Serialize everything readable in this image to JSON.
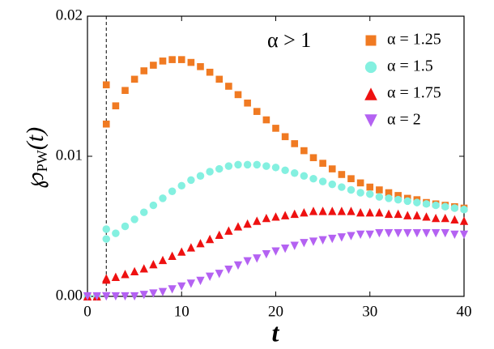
{
  "chart_data": {
    "type": "scatter",
    "annotation": "α > 1",
    "x_label": "t",
    "y_label": {
      "symbol": "℘",
      "subscript": "PW",
      "arg": "(t)"
    },
    "xlim": [
      0,
      40
    ],
    "xticks": [
      0,
      10,
      20,
      30,
      40
    ],
    "ylim": [
      0,
      0.02
    ],
    "yticks": [
      {
        "value": 0,
        "label": "0.00"
      },
      {
        "value": 0.01,
        "label": "0.01"
      },
      {
        "value": 0.02,
        "label": "0.02"
      }
    ],
    "vline": 2,
    "legend": "upper right",
    "x": [
      0,
      1,
      2,
      2,
      3,
      4,
      5,
      6,
      7,
      8,
      9,
      10,
      11,
      12,
      13,
      14,
      15,
      16,
      17,
      18,
      19,
      20,
      21,
      22,
      23,
      24,
      25,
      26,
      27,
      28,
      29,
      30,
      31,
      32,
      33,
      34,
      35,
      36,
      37,
      38,
      39,
      40
    ],
    "series": [
      {
        "name": "α = 1.25",
        "color": "#f07a22",
        "marker": "square",
        "values": [
          0,
          0,
          0.0151,
          0.0123,
          0.0136,
          0.0147,
          0.0155,
          0.0161,
          0.0165,
          0.0168,
          0.0169,
          0.0169,
          0.0167,
          0.0164,
          0.016,
          0.0155,
          0.015,
          0.0144,
          0.0138,
          0.0132,
          0.0126,
          0.012,
          0.0114,
          0.0109,
          0.0104,
          0.0099,
          0.0095,
          0.0091,
          0.0087,
          0.0084,
          0.0081,
          0.0078,
          0.0076,
          0.0074,
          0.0072,
          0.007,
          0.0069,
          0.0067,
          0.0066,
          0.0065,
          0.0064,
          0.0063
        ]
      },
      {
        "name": "α = 1.5",
        "color": "#84f0e0",
        "marker": "circle",
        "values": [
          0,
          0,
          0.0048,
          0.0041,
          0.0045,
          0.005,
          0.0055,
          0.006,
          0.0065,
          0.007,
          0.0075,
          0.0079,
          0.0083,
          0.0086,
          0.0089,
          0.0091,
          0.0093,
          0.0094,
          0.0094,
          0.0094,
          0.0093,
          0.0092,
          0.009,
          0.0088,
          0.0086,
          0.0084,
          0.0082,
          0.008,
          0.0078,
          0.0076,
          0.0074,
          0.0073,
          0.0071,
          0.007,
          0.0069,
          0.0068,
          0.0067,
          0.0066,
          0.0065,
          0.0064,
          0.0063,
          0.0062
        ]
      },
      {
        "name": "α = 1.75",
        "color": "#ee1111",
        "marker": "triangle-up",
        "values": [
          0,
          0,
          0.0013,
          0.0012,
          0.0014,
          0.0016,
          0.0018,
          0.002,
          0.0023,
          0.0026,
          0.0029,
          0.0032,
          0.0035,
          0.0038,
          0.0041,
          0.0044,
          0.0047,
          0.005,
          0.0052,
          0.0054,
          0.0056,
          0.0057,
          0.0058,
          0.0059,
          0.006,
          0.0061,
          0.0061,
          0.0061,
          0.0061,
          0.0061,
          0.006,
          0.006,
          0.006,
          0.0059,
          0.0059,
          0.0058,
          0.0058,
          0.0057,
          0.0056,
          0.0056,
          0.0055,
          0.0054
        ]
      },
      {
        "name": "α = 2",
        "color": "#b462f2",
        "marker": "triangle-down",
        "values": [
          0,
          0,
          0,
          0,
          0,
          0,
          0,
          0.0001,
          0.0002,
          0.0003,
          0.0005,
          0.0007,
          0.0009,
          0.0011,
          0.0014,
          0.0016,
          0.0019,
          0.0022,
          0.0025,
          0.0027,
          0.003,
          0.0032,
          0.0034,
          0.0036,
          0.0038,
          0.0039,
          0.004,
          0.0041,
          0.0042,
          0.0043,
          0.0044,
          0.0044,
          0.0045,
          0.0045,
          0.0045,
          0.0045,
          0.0045,
          0.0045,
          0.0045,
          0.0045,
          0.0044,
          0.0044
        ]
      }
    ]
  }
}
